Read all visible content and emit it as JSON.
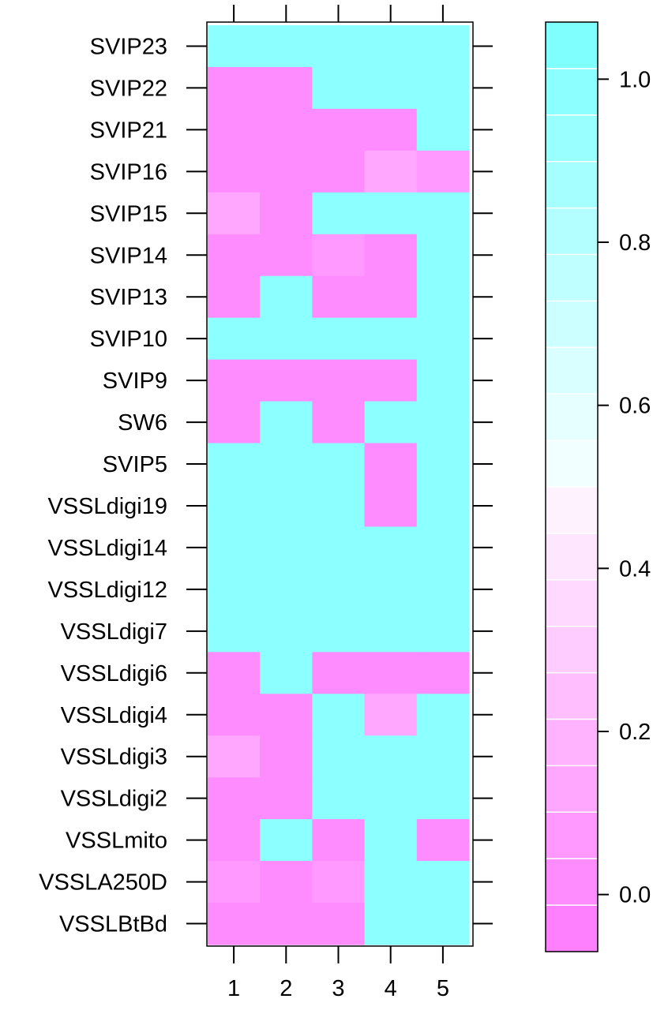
{
  "chart_data": {
    "type": "heatmap",
    "title": "",
    "xlabel": "",
    "ylabel": "",
    "x_categories": [
      "1",
      "2",
      "3",
      "4",
      "5"
    ],
    "y_categories": [
      "SVIP23",
      "SVIP22",
      "SVIP21",
      "SVIP16",
      "SVIP15",
      "SVIP14",
      "SVIP13",
      "SVIP10",
      "SVIP9",
      "SW6",
      "SVIP5",
      "VSSLdigi19",
      "VSSLdigi14",
      "VSSLdigi12",
      "VSSLdigi7",
      "VSSLdigi6",
      "VSSLdigi4",
      "VSSLdigi3",
      "VSSLdigi2",
      "VSSLmito",
      "VSSLA250D",
      "VSSLBtBd"
    ],
    "values": [
      [
        1,
        1,
        1,
        1,
        1
      ],
      [
        0,
        0,
        1,
        1,
        1
      ],
      [
        0,
        0,
        0,
        0,
        1
      ],
      [
        0,
        0,
        0,
        0.15,
        0.1
      ],
      [
        0.15,
        0,
        1,
        1,
        1
      ],
      [
        0,
        0,
        0.1,
        0,
        1
      ],
      [
        0,
        1,
        0,
        0,
        1
      ],
      [
        1,
        1,
        1,
        1,
        1
      ],
      [
        0,
        0,
        0,
        0,
        1
      ],
      [
        0,
        1,
        0,
        1,
        1
      ],
      [
        1,
        1,
        1,
        0,
        1
      ],
      [
        1,
        1,
        1,
        0,
        1
      ],
      [
        1,
        1,
        1,
        1,
        1
      ],
      [
        1,
        1,
        1,
        1,
        1
      ],
      [
        1,
        1,
        1,
        1,
        1
      ],
      [
        0,
        1,
        0,
        0,
        0
      ],
      [
        0,
        0,
        1,
        0.15,
        1
      ],
      [
        0.15,
        0,
        1,
        1,
        1
      ],
      [
        0,
        0,
        1,
        1,
        1
      ],
      [
        0,
        1,
        0,
        1,
        0
      ],
      [
        0.1,
        0,
        0.1,
        1,
        1
      ],
      [
        0,
        0,
        0,
        1,
        1
      ]
    ],
    "colorbar": {
      "range": [
        -0.07,
        1.07
      ],
      "ticks": [
        "0.0",
        "0.2",
        "0.4",
        "0.6",
        "0.8",
        "1.0"
      ],
      "colors": [
        "#ff80ff",
        "#ff8cff",
        "#ff99ff",
        "#ffa6ff",
        "#ffb3ff",
        "#ffbfff",
        "#ffccff",
        "#ffd9ff",
        "#ffe6ff",
        "#fff2ff",
        "#f2ffff",
        "#e6ffff",
        "#d9ffff",
        "#ccffff",
        "#bfffff",
        "#b3ffff",
        "#a6ffff",
        "#99ffff",
        "#8cffff",
        "#80ffff"
      ]
    },
    "grid": false,
    "legend": "right"
  }
}
